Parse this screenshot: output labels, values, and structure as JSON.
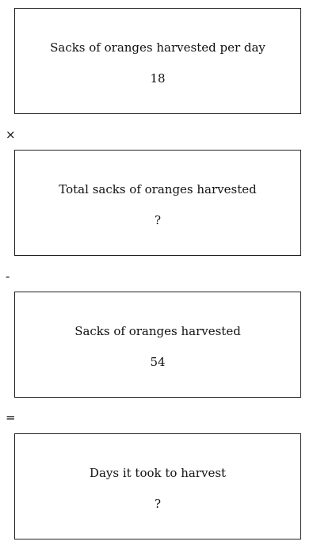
{
  "boxes": [
    {
      "label": "Sacks of oranges harvested per day",
      "value": "18"
    },
    {
      "label": "Total sacks of oranges harvested",
      "value": "?"
    },
    {
      "label": "Sacks of oranges harvested",
      "value": "54"
    },
    {
      "label": "Days it took to harvest",
      "value": "?"
    }
  ],
  "operators": [
    "×",
    "-",
    "="
  ]
}
